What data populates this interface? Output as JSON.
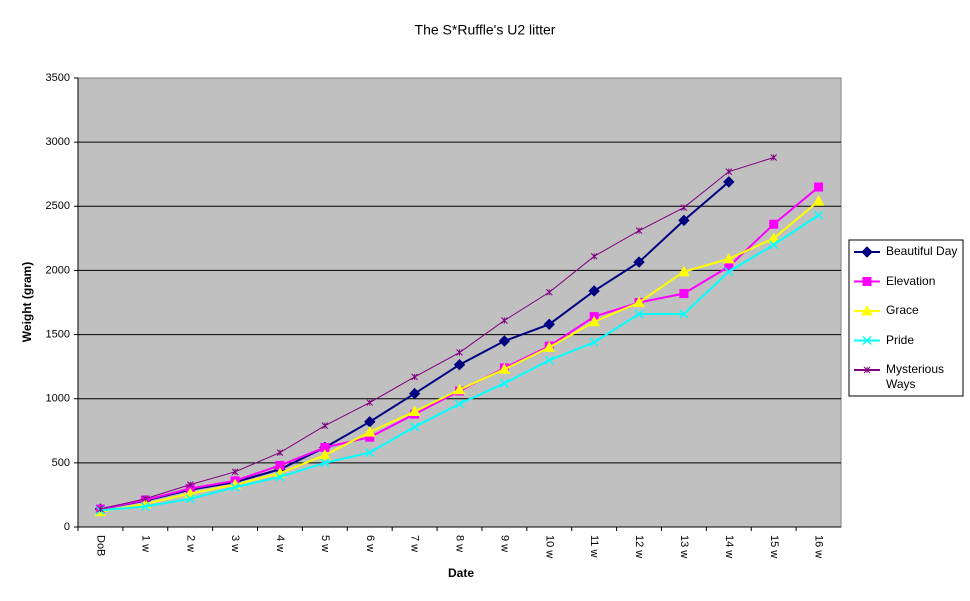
{
  "chart_data": {
    "type": "line",
    "title": "The S*Ruffle's U2 litter",
    "x_label": "Date",
    "y_label": "Weight (gram)",
    "categories": [
      "DoB",
      "1 w",
      "2 w",
      "3 w",
      "4 w",
      "5 w",
      "6 w",
      "7 w",
      "8 w",
      "9 w",
      "10 w",
      "11 w",
      "12 w",
      "13 w",
      "14 w",
      "15 w",
      "16 w"
    ],
    "ylim": [
      0,
      3500
    ],
    "yticks": [
      0,
      500,
      1000,
      1500,
      2000,
      2500,
      3000,
      3500
    ],
    "grid": true,
    "legend": "right",
    "series": [
      {
        "name": "Beautiful Day",
        "color": "#000080",
        "marker": "diamond",
        "values": [
          140,
          205,
          290,
          350,
          450,
          620,
          820,
          1040,
          1265,
          1450,
          1580,
          1840,
          2065,
          2390,
          2690,
          null,
          null
        ]
      },
      {
        "name": "Elevation",
        "color": "#ff00ff",
        "marker": "square",
        "values": [
          140,
          210,
          300,
          360,
          480,
          620,
          700,
          880,
          1060,
          1240,
          1410,
          1640,
          1750,
          1820,
          2030,
          2360,
          2650
        ]
      },
      {
        "name": "Grace",
        "color": "#ffff00",
        "marker": "triangle",
        "values": [
          120,
          180,
          260,
          330,
          420,
          560,
          740,
          900,
          1070,
          1230,
          1400,
          1600,
          1750,
          1990,
          2090,
          2250,
          2540
        ]
      },
      {
        "name": "Pride",
        "color": "#00ffff",
        "marker": "x",
        "values": [
          130,
          160,
          220,
          310,
          390,
          500,
          580,
          780,
          960,
          1120,
          1300,
          1440,
          1660,
          1660,
          1990,
          2200,
          2430
        ]
      },
      {
        "name": "Mysterious Ways",
        "color": "#800080",
        "marker": "star",
        "values": [
          140,
          220,
          330,
          430,
          580,
          790,
          970,
          1170,
          1360,
          1610,
          1830,
          2110,
          2310,
          2490,
          2770,
          2880,
          null
        ]
      }
    ]
  }
}
